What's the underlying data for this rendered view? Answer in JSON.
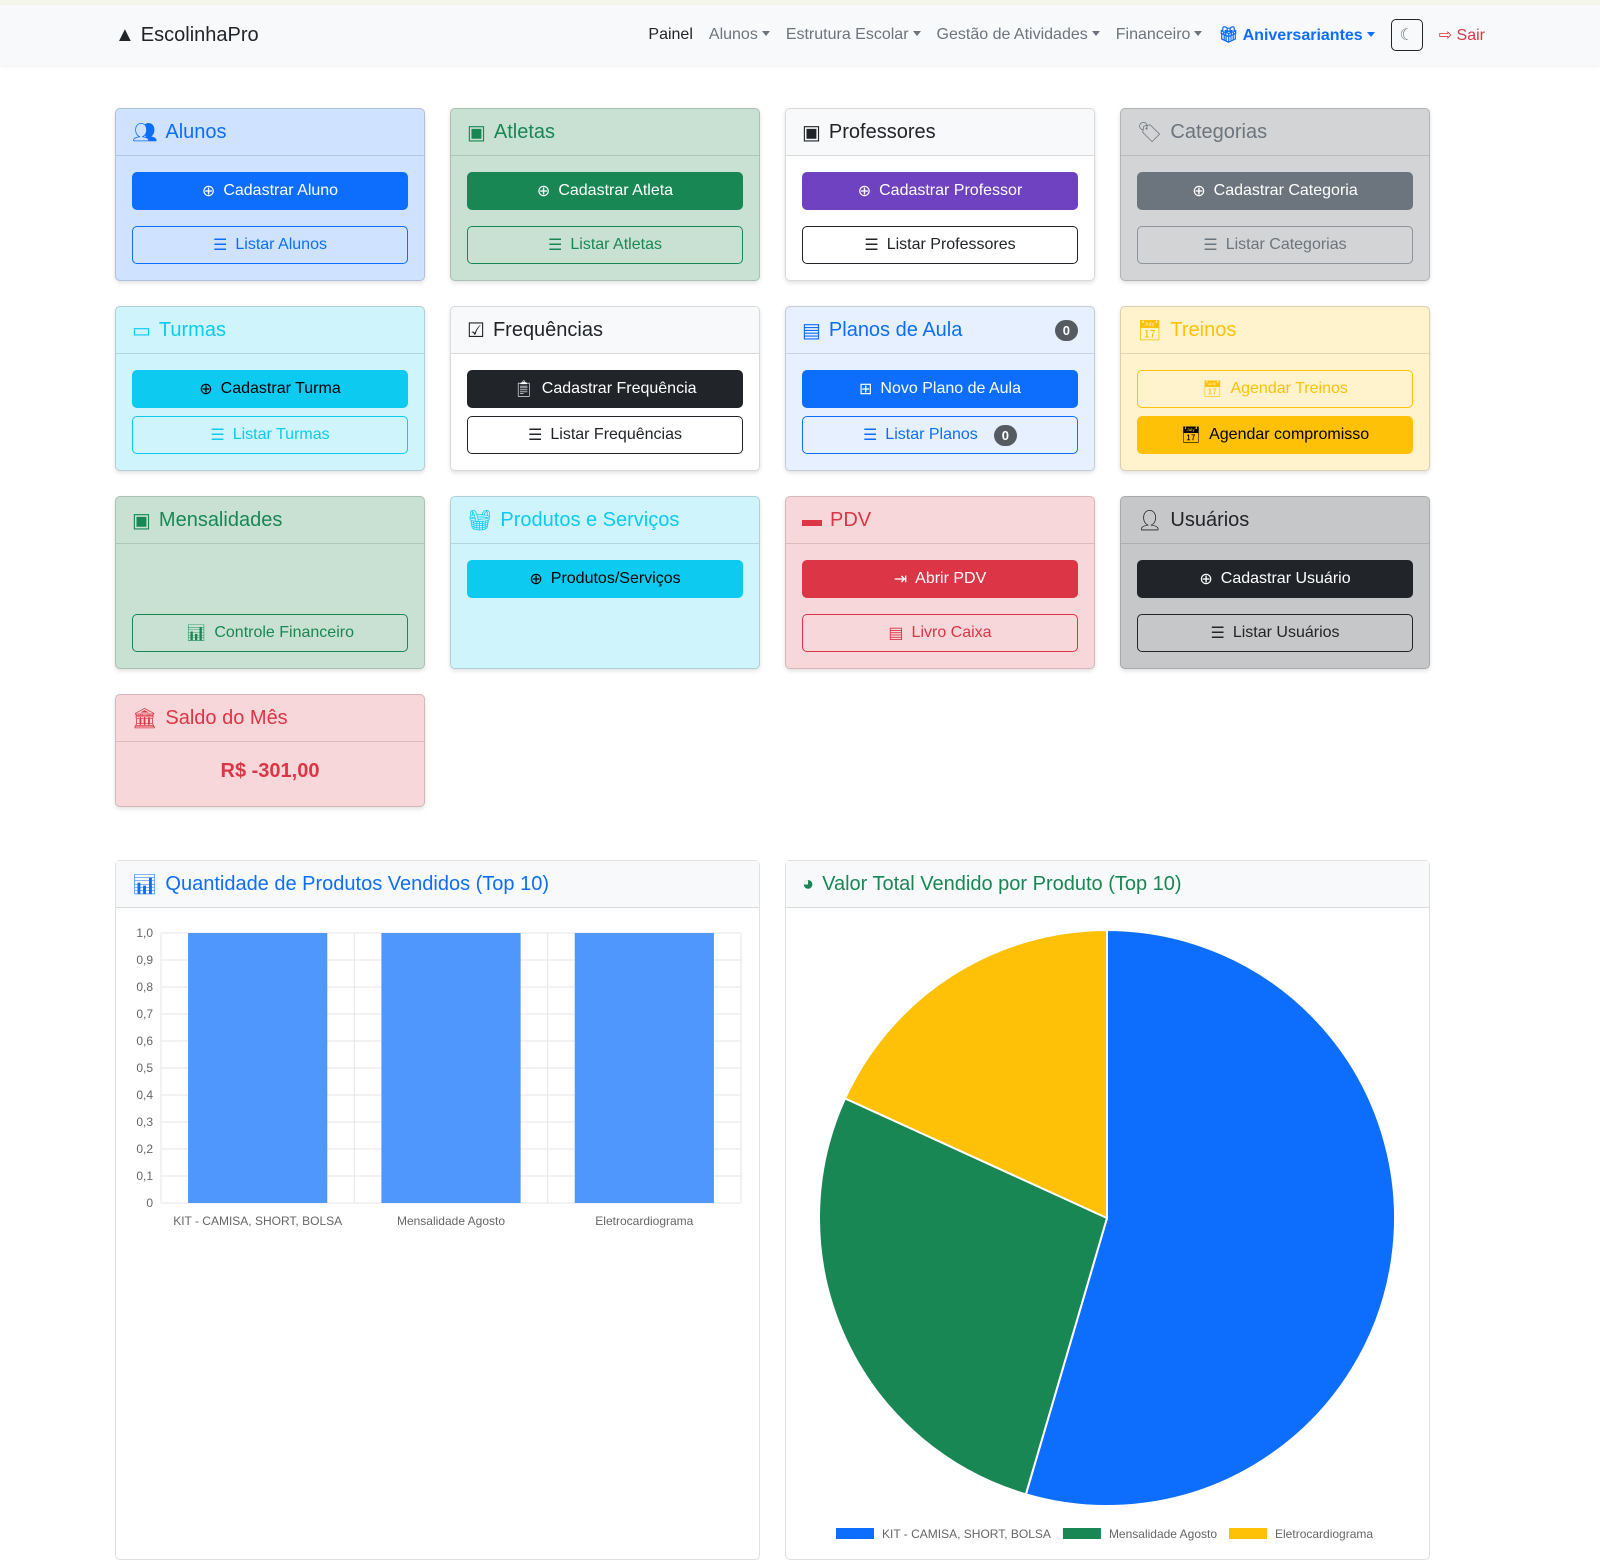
{
  "nav": {
    "brand": "EscolinhaPro",
    "items": [
      "Painel",
      "Alunos",
      "Estrutura Escolar",
      "Gestão de Atividades",
      "Financeiro"
    ],
    "aniversariantes": "Aniversariantes",
    "sair": "Sair"
  },
  "cards": {
    "alunos": {
      "title": "Alunos",
      "b1": "Cadastrar Aluno",
      "b2": "Listar Alunos"
    },
    "atletas": {
      "title": "Atletas",
      "b1": "Cadastrar Atleta",
      "b2": "Listar Atletas"
    },
    "professores": {
      "title": "Professores",
      "b1": "Cadastrar Professor",
      "b2": "Listar Professores"
    },
    "categorias": {
      "title": "Categorias",
      "b1": "Cadastrar Categoria",
      "b2": "Listar Categorias"
    },
    "turmas": {
      "title": "Turmas",
      "b1": "Cadastrar Turma",
      "b2": "Listar Turmas"
    },
    "frequencias": {
      "title": "Frequências",
      "b1": "Cadastrar Frequência",
      "b2": "Listar Frequências"
    },
    "planos": {
      "title": "Planos de Aula",
      "badge": "0",
      "b1": "Novo Plano de Aula",
      "b2": "Listar Planos",
      "b2badge": "0"
    },
    "treinos": {
      "title": "Treinos",
      "b1": "Agendar Treinos",
      "b2": "Agendar compromisso"
    },
    "mensalidades": {
      "title": "Mensalidades",
      "b2": "Controle Financeiro"
    },
    "produtos": {
      "title": "Produtos e Serviços",
      "b1": "Produtos/Serviços"
    },
    "pdv": {
      "title": "PDV",
      "b1": "Abrir PDV",
      "b2": "Livro Caixa"
    },
    "usuarios": {
      "title": "Usuários",
      "b1": "Cadastrar Usuário",
      "b2": "Listar Usuários"
    },
    "saldo": {
      "title": "Saldo do Mês",
      "value": "R$ -301,00"
    }
  },
  "chart_data": [
    {
      "type": "bar",
      "title": "Quantidade de Produtos Vendidos (Top 10)",
      "categories": [
        "KIT - CAMISA, SHORT, BOLSA",
        "Mensalidade Agosto",
        "Eletrocardiograma"
      ],
      "values": [
        1,
        1,
        1
      ],
      "ylim": [
        0,
        1
      ],
      "yticks": [
        "0",
        "0,1",
        "0,2",
        "0,3",
        "0,4",
        "0,5",
        "0,6",
        "0,7",
        "0,8",
        "0,9",
        "1,0"
      ],
      "color": "#4f97fd",
      "grid": true
    },
    {
      "type": "pie",
      "title": "Valor Total Vendido por Produto (Top 10)",
      "categories": [
        "KIT - CAMISA, SHORT, BOLSA",
        "Mensalidade Agosto",
        "Eletrocardiograma"
      ],
      "values": [
        150,
        75,
        50
      ],
      "colors": [
        "#0d6efd",
        "#198754",
        "#ffc107"
      ],
      "legend": "bottom"
    }
  ]
}
